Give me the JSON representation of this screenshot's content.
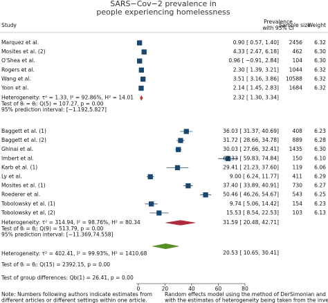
{
  "chart_data": {
    "type": "forest",
    "title": [
      "SARS−Cov−2 prevalence in",
      "people experiencing homelessness"
    ],
    "headers": {
      "study": "Study",
      "estimate": [
        "Prevalence",
        "with 95% CI"
      ],
      "sample_size": "Sample size",
      "weight": "Weight"
    },
    "xlim": [
      -1.5,
      80
    ],
    "xticks": [
      0,
      20,
      40,
      60,
      80
    ],
    "marker_color": "#1a476f",
    "groups": [
      {
        "names": [
          "Marquez et al.",
          "Mosites et al. (2)",
          "O'Shea et al.",
          "Rogers et al.",
          "Wang et al.",
          "Yoon et al."
        ],
        "values": [
          0.9,
          4.33,
          0.96,
          2.3,
          3.51,
          2.14
        ],
        "lower": [
          0.57,
          2.47,
          -0.91,
          1.39,
          3.16,
          1.45
        ],
        "upper": [
          1.4,
          6.18,
          2.84,
          3.21,
          3.86,
          2.83
        ],
        "value_labels": [
          "0.90 [  0.57,  1.40]",
          "4.33 [  2.47,  6.18]",
          "0.96 [ −0.91,  2.84]",
          "2.30 [  1.39,  3.21]",
          "3.51 [  3.16,  3.86]",
          "2.14 [  1.45,  2.83]"
        ],
        "sample_sizes": [
          2456,
          462,
          104,
          1044,
          10588,
          1684
        ],
        "weights": [
          6.32,
          6.3,
          6.3,
          6.32,
          6.32,
          6.32
        ],
        "weight_labels": [
          "6.32",
          "6.30",
          "6.30",
          "6.32",
          "6.32",
          "6.32"
        ],
        "summary": {
          "heterogeneity": "Heterogeneity: τ² = 1.33, I² = 92.86%, H² = 14.01",
          "value": 2.32,
          "lower": 1.3,
          "upper": 3.34,
          "value_label": "2.32 [  1.30,  3.34]",
          "color": "#c0392b",
          "test": "Test of θᵢ = θⱼ: Q(5) = 107.27, p = 0.00",
          "prediction_interval": "95% prediction interval: [−1.192,5.827]"
        }
      },
      {
        "names": [
          "Baggett et al. (1)",
          "Baggett et al. (2)",
          "Ghinai et al.",
          "Imbert et al.",
          "Karb et al. (1)",
          "Ly et al.",
          "Mosites et al. (1)",
          "Roederer et al.",
          "Tobolowsky et al. (1)",
          "Tobolowsky et al. (2)"
        ],
        "values": [
          36.03,
          31.72,
          30.03,
          67.33,
          29.41,
          9.0,
          37.4,
          50.46,
          9.74,
          15.53
        ],
        "lower": [
          31.37,
          28.66,
          27.66,
          59.83,
          21.23,
          6.24,
          33.89,
          46.26,
          5.06,
          8.54
        ],
        "upper": [
          40.69,
          34.78,
          32.41,
          74.84,
          37.6,
          11.77,
          40.91,
          54.67,
          14.42,
          22.53
        ],
        "value_labels": [
          "36.03 [ 31.37, 40.69]",
          "31.72 [ 28.66, 34.78]",
          "30.03 [ 27.66, 32.41]",
          "67.33 [ 59.83, 74.84]",
          "29.41 [ 21.23, 37.60]",
          "9.00 [  6.24, 11.77]",
          "37.40 [ 33.89, 40.91]",
          "50.46 [ 46.26, 54.67]",
          "9.74 [  5.06, 14.42]",
          "15.53 [  8.54, 22.53]"
        ],
        "sample_sizes": [
          408,
          889,
          1435,
          150,
          119,
          411,
          730,
          543,
          154,
          103
        ],
        "weights": [
          6.23,
          6.28,
          6.3,
          6.1,
          6.06,
          6.29,
          6.27,
          6.25,
          6.23,
          6.13
        ],
        "weight_labels": [
          "6.23",
          "6.28",
          "6.30",
          "6.10",
          "6.06",
          "6.29",
          "6.27",
          "6.25",
          "6.23",
          "6.13"
        ],
        "summary": {
          "heterogeneity": "Heterogeneity: τ² = 314.94, I² = 98.76%, H² = 80.34",
          "value": 31.59,
          "lower": 20.48,
          "upper": 42.71,
          "value_label": "31.59 [ 20.48, 42.71]",
          "color": "#b0283b",
          "test": "Test of θᵢ = θⱼ: Q(9) = 513.79, p = 0.00",
          "prediction_interval": "95% prediction interval: [−11.369,74.558]"
        }
      }
    ],
    "overall": {
      "heterogeneity": "Heterogeneity: τ² = 402.41, I² = 99.93%, H² = 1410.68",
      "value": 20.53,
      "lower": 10.65,
      "upper": 30.41,
      "value_label": "20.53 [ 10.65, 30.41]",
      "color": "#5a8f29",
      "test": "Test of θᵢ = θⱼ: Q(15) = 2392.15, p = 0.00",
      "group_test": "Test of group differences: Qb(1) = 26.41, p = 0.00"
    },
    "notes": [
      [
        "Note: Numbers following authors indicate estimates from",
        "different articles or different settings within one article."
      ],
      [
        "Random effects model using the method of DerSimonian and Laird,",
        "with the estimates of heterogeneity being taken from the inverse–variance"
      ]
    ]
  }
}
